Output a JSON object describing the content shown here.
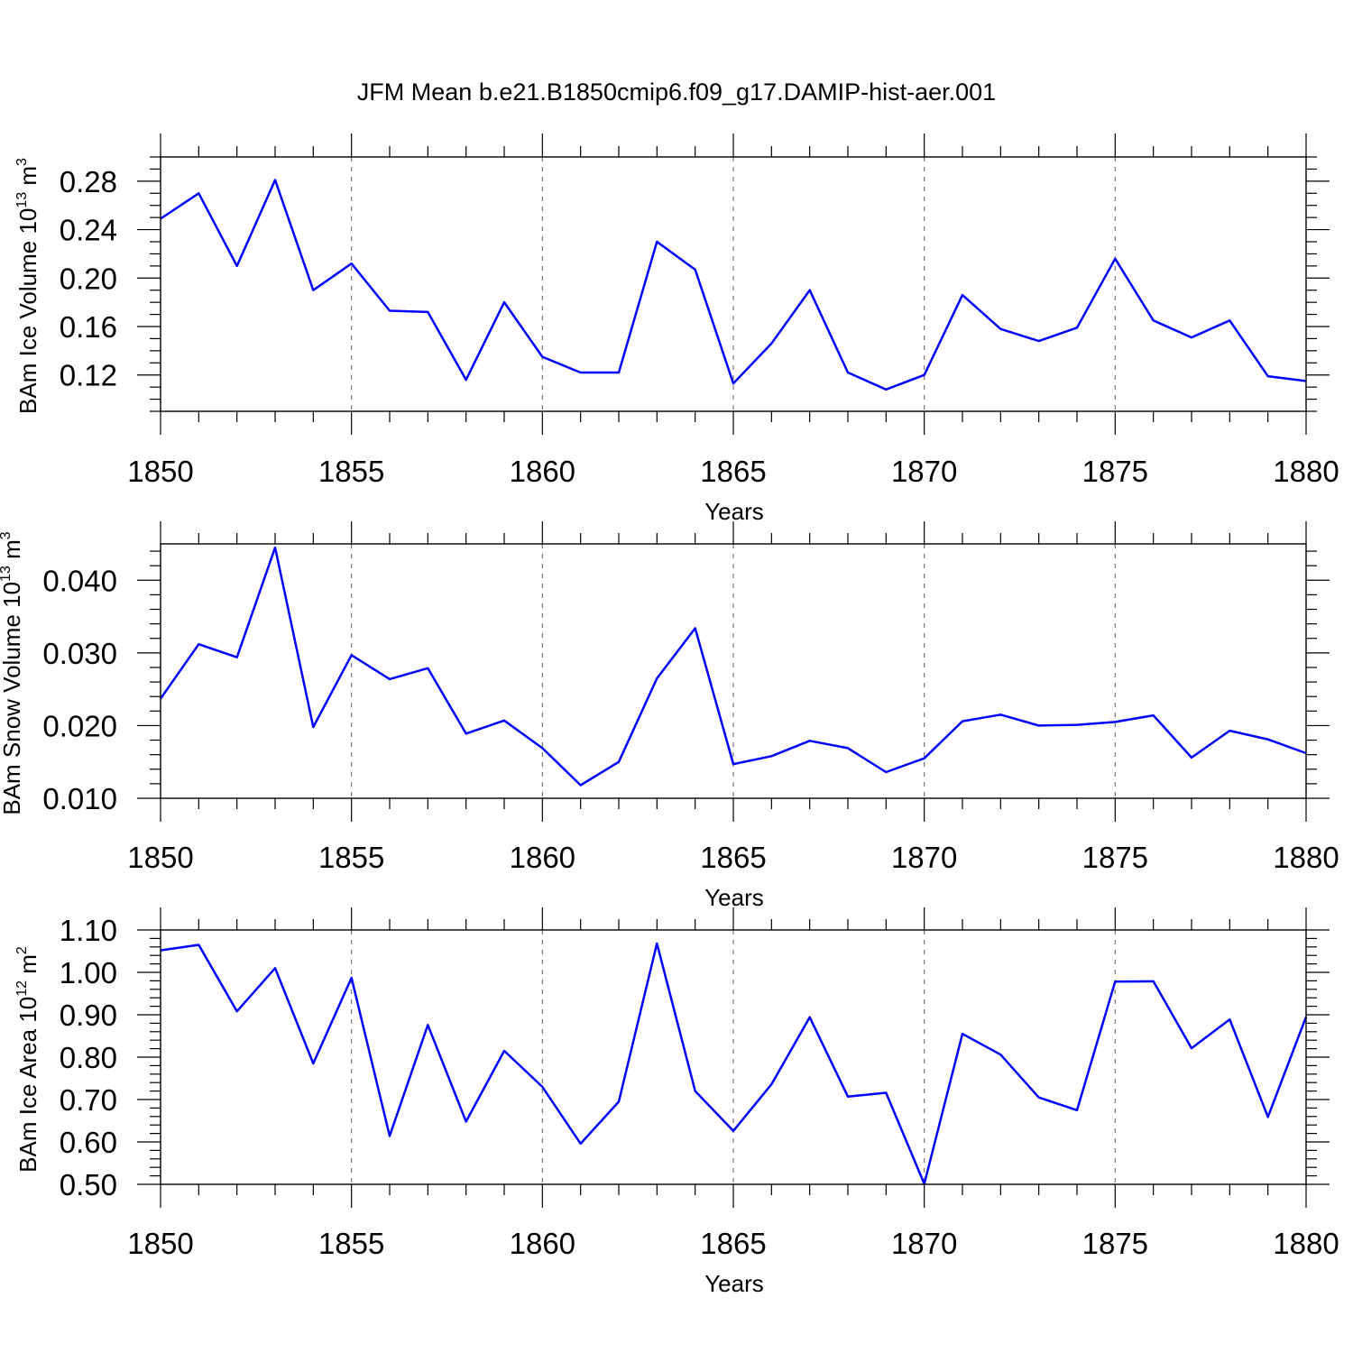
{
  "figure": {
    "title": "JFM Mean b.e21.B1850cmip6.f09_g17.DAMIP-hist-aer.001"
  },
  "chart_data": [
    {
      "type": "line",
      "xlabel": "Years",
      "ylabel": "BAm Ice Volume 10",
      "ylabel_sup": "13",
      "ylabel_unit": "m",
      "ylabel_unit_sup": "3",
      "xlim": [
        1850,
        1880
      ],
      "ylim": [
        0.09,
        0.3
      ],
      "x_ticks": [
        1850,
        1855,
        1860,
        1865,
        1870,
        1875,
        1880
      ],
      "x_tick_labels": [
        "1850",
        "1855",
        "1860",
        "1865",
        "1870",
        "1875",
        "1880"
      ],
      "y_ticks": [
        0.12,
        0.16,
        0.2,
        0.24,
        0.28
      ],
      "y_tick_labels": [
        "0.12",
        "0.16",
        "0.20",
        "0.24",
        "0.28"
      ],
      "grid": "vertical dashed at major x ticks",
      "line_color": "#0000ff",
      "x": [
        1850,
        1851,
        1852,
        1853,
        1854,
        1855,
        1856,
        1857,
        1858,
        1859,
        1860,
        1861,
        1862,
        1863,
        1864,
        1865,
        1866,
        1867,
        1868,
        1869,
        1870,
        1871,
        1872,
        1873,
        1874,
        1875,
        1876,
        1877,
        1878,
        1879,
        1880
      ],
      "values": [
        0.249,
        0.27,
        0.21,
        0.281,
        0.19,
        0.212,
        0.173,
        0.172,
        0.116,
        0.18,
        0.135,
        0.122,
        0.122,
        0.23,
        0.207,
        0.113,
        0.146,
        0.19,
        0.122,
        0.108,
        0.12,
        0.186,
        0.158,
        0.148,
        0.159,
        0.216,
        0.165,
        0.151,
        0.165,
        0.119,
        0.115
      ]
    },
    {
      "type": "line",
      "xlabel": "Years",
      "ylabel": "BAm Snow Volume 10",
      "ylabel_sup": "13",
      "ylabel_unit": "m",
      "ylabel_unit_sup": "3",
      "xlim": [
        1850,
        1880
      ],
      "ylim": [
        0.01,
        0.045
      ],
      "x_ticks": [
        1850,
        1855,
        1860,
        1865,
        1870,
        1875,
        1880
      ],
      "x_tick_labels": [
        "1850",
        "1855",
        "1860",
        "1865",
        "1870",
        "1875",
        "1880"
      ],
      "y_ticks": [
        0.01,
        0.02,
        0.03,
        0.04
      ],
      "y_tick_labels": [
        "0.010",
        "0.020",
        "0.030",
        "0.040"
      ],
      "grid": "vertical dashed at major x ticks",
      "line_color": "#0000ff",
      "x": [
        1850,
        1851,
        1852,
        1853,
        1854,
        1855,
        1856,
        1857,
        1858,
        1859,
        1860,
        1861,
        1862,
        1863,
        1864,
        1865,
        1866,
        1867,
        1868,
        1869,
        1870,
        1871,
        1872,
        1873,
        1874,
        1875,
        1876,
        1877,
        1878,
        1879,
        1880
      ],
      "values": [
        0.0237,
        0.0312,
        0.0294,
        0.0445,
        0.0198,
        0.0297,
        0.0264,
        0.0279,
        0.0189,
        0.0207,
        0.0169,
        0.0118,
        0.015,
        0.0265,
        0.0334,
        0.0147,
        0.0158,
        0.0179,
        0.0169,
        0.0136,
        0.0155,
        0.0206,
        0.0215,
        0.02,
        0.0201,
        0.0205,
        0.0214,
        0.0156,
        0.0193,
        0.0181,
        0.0162
      ]
    },
    {
      "type": "line",
      "xlabel": "Years",
      "ylabel": "BAm Ice Area 10",
      "ylabel_sup": "12",
      "ylabel_unit": "m",
      "ylabel_unit_sup": "2",
      "xlim": [
        1850,
        1880
      ],
      "ylim": [
        0.5,
        1.1
      ],
      "x_ticks": [
        1850,
        1855,
        1860,
        1865,
        1870,
        1875,
        1880
      ],
      "x_tick_labels": [
        "1850",
        "1855",
        "1860",
        "1865",
        "1870",
        "1875",
        "1880"
      ],
      "y_ticks": [
        0.5,
        0.6,
        0.7,
        0.8,
        0.9,
        1.0,
        1.1
      ],
      "y_tick_labels": [
        "0.50",
        "0.60",
        "0.70",
        "0.80",
        "0.90",
        "1.00",
        "1.10"
      ],
      "grid": "vertical dashed at major x ticks",
      "line_color": "#0000ff",
      "x": [
        1850,
        1851,
        1852,
        1853,
        1854,
        1855,
        1856,
        1857,
        1858,
        1859,
        1860,
        1861,
        1862,
        1863,
        1864,
        1865,
        1866,
        1867,
        1868,
        1869,
        1870,
        1871,
        1872,
        1873,
        1874,
        1875,
        1876,
        1877,
        1878,
        1879,
        1880
      ],
      "values": [
        1.052,
        1.065,
        0.908,
        1.01,
        0.785,
        0.987,
        0.614,
        0.876,
        0.648,
        0.815,
        0.73,
        0.596,
        0.695,
        1.068,
        0.72,
        0.626,
        0.736,
        0.894,
        0.707,
        0.716,
        0.501,
        0.855,
        0.806,
        0.705,
        0.675,
        0.978,
        0.979,
        0.821,
        0.889,
        0.659,
        0.895
      ]
    }
  ]
}
